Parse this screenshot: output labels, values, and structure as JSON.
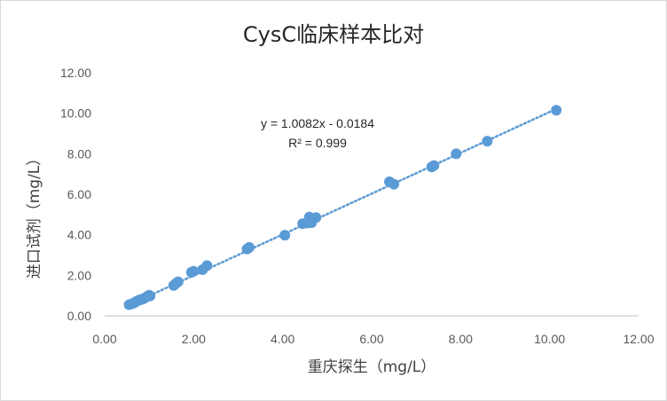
{
  "chart_data": {
    "type": "scatter",
    "title": "CysC临床样本比对",
    "xlabel": "重庆探生（mg/L）",
    "ylabel": "进口试剂（mg/L）",
    "xlim": [
      0,
      12
    ],
    "ylim": [
      0,
      12
    ],
    "x_ticks": [
      "0.00",
      "2.00",
      "4.00",
      "6.00",
      "8.00",
      "10.00",
      "12.00"
    ],
    "y_ticks": [
      "0.00",
      "2.00",
      "4.00",
      "6.00",
      "8.00",
      "10.00",
      "12.00"
    ],
    "grid": false,
    "legend": "none",
    "marker_color": "#5b9bd5",
    "trendline": {
      "type": "linear",
      "slope": 1.0082,
      "intercept": -0.0184,
      "style": "dotted",
      "color": "#5b9bd5",
      "equation": "y = 1.0082x - 0.0184",
      "r_squared": "R² = 0.999"
    },
    "points": [
      [
        0.55,
        0.55
      ],
      [
        0.62,
        0.6
      ],
      [
        0.68,
        0.66
      ],
      [
        0.72,
        0.72
      ],
      [
        0.76,
        0.76
      ],
      [
        0.8,
        0.8
      ],
      [
        0.85,
        0.82
      ],
      [
        0.9,
        0.88
      ],
      [
        0.95,
        0.95
      ],
      [
        1.0,
        1.02
      ],
      [
        1.02,
        0.98
      ],
      [
        1.55,
        1.5
      ],
      [
        1.6,
        1.6
      ],
      [
        1.65,
        1.68
      ],
      [
        1.95,
        2.15
      ],
      [
        2.0,
        2.2
      ],
      [
        2.2,
        2.28
      ],
      [
        2.3,
        2.48
      ],
      [
        3.2,
        3.3
      ],
      [
        3.25,
        3.38
      ],
      [
        4.05,
        3.98
      ],
      [
        4.45,
        4.55
      ],
      [
        4.55,
        4.58
      ],
      [
        4.6,
        4.88
      ],
      [
        4.65,
        4.6
      ],
      [
        4.75,
        4.85
      ],
      [
        6.4,
        6.62
      ],
      [
        6.5,
        6.5
      ],
      [
        7.35,
        7.35
      ],
      [
        7.4,
        7.42
      ],
      [
        7.9,
        8.0
      ],
      [
        8.6,
        8.62
      ],
      [
        10.15,
        10.15
      ]
    ]
  }
}
